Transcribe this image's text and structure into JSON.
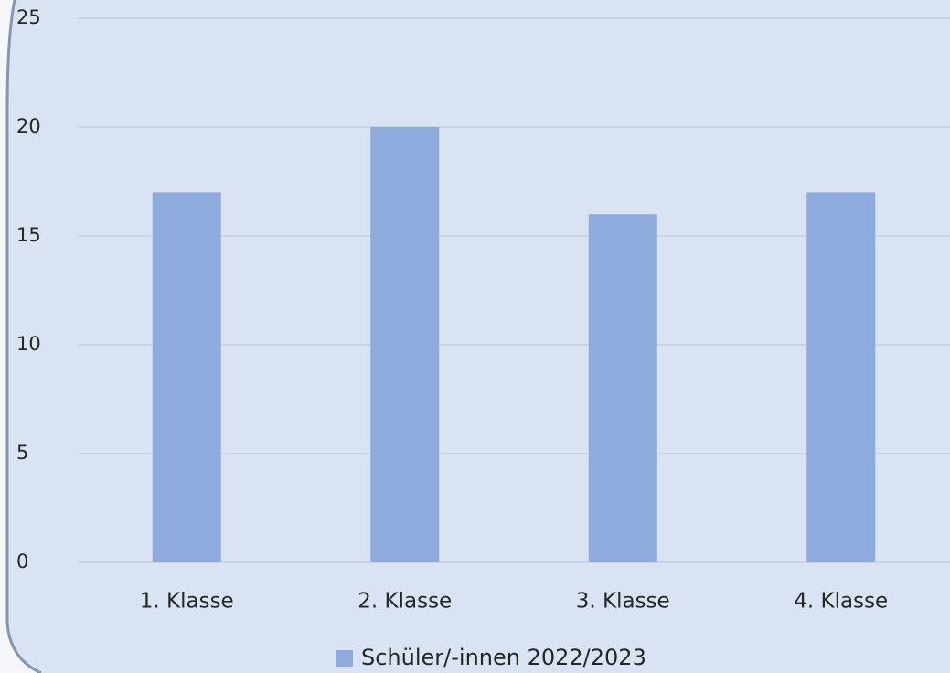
{
  "chart_data": {
    "type": "bar",
    "categories": [
      "1. Klasse",
      "2. Klasse",
      "3. Klasse",
      "4. Klasse"
    ],
    "series": [
      {
        "name": "Schüler/-innen 2022/2023",
        "color": "#8faadc",
        "values": [
          17,
          20,
          16,
          17
        ]
      }
    ],
    "ylim": [
      0,
      25
    ],
    "yticks": [
      0,
      5,
      10,
      15,
      20,
      25
    ],
    "grid": true,
    "legend": "bottom"
  }
}
